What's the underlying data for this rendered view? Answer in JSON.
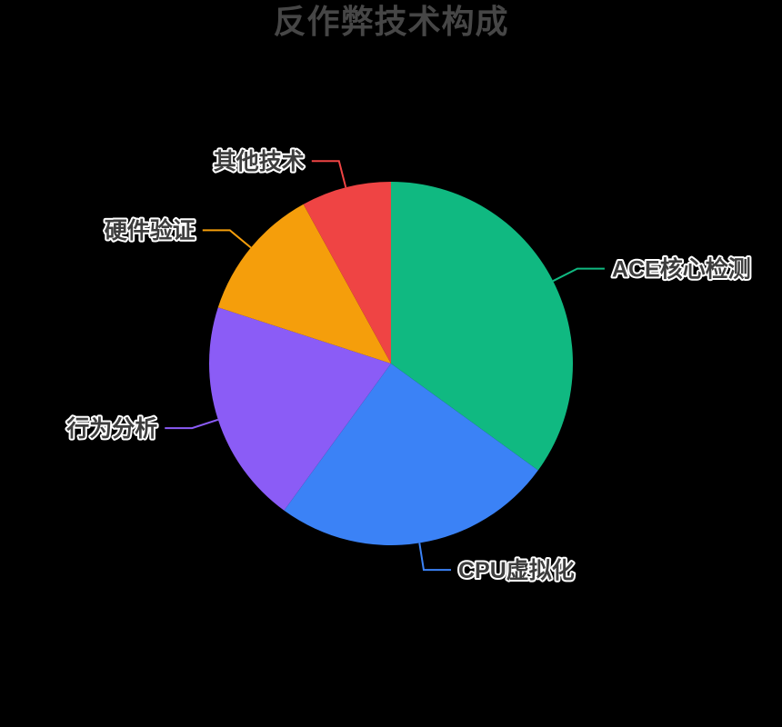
{
  "page": {
    "background_color": "#000000"
  },
  "chart_data": {
    "type": "pie",
    "title": "反作弊技术构成",
    "title_color": "#464646",
    "unit": "%",
    "direction": "clockwise",
    "start_angle": "12-oclock",
    "legend": "none",
    "labels_position": "outside-with-leader-lines",
    "label_style": {
      "text_color": "#3D3D3D",
      "outline_color": "#FFFFFF"
    },
    "series": [
      {
        "name": "ACE核心检测",
        "value": 35,
        "color": "#10B981"
      },
      {
        "name": "CPU虚拟化",
        "value": 25,
        "color": "#3B82F6"
      },
      {
        "name": "行为分析",
        "value": 20,
        "color": "#8B5CF6"
      },
      {
        "name": "硬件验证",
        "value": 12,
        "color": "#F59E0B"
      },
      {
        "name": "其他技术",
        "value": 8,
        "color": "#EF4444"
      }
    ]
  }
}
